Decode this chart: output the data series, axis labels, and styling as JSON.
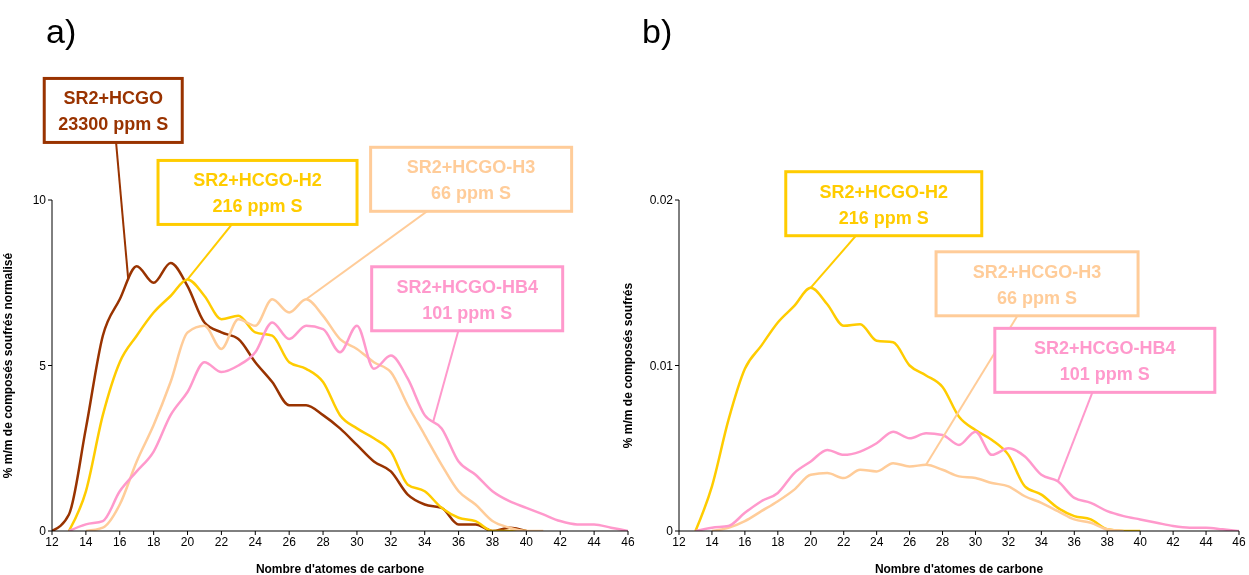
{
  "chart_data": [
    {
      "type": "line",
      "title": "a)",
      "xlabel": "Nombre d'atomes de carbone",
      "ylabel": "% m/m de composés soufrés normalisé",
      "x": [
        12,
        13,
        14,
        15,
        16,
        17,
        18,
        19,
        20,
        21,
        22,
        23,
        24,
        25,
        26,
        27,
        28,
        29,
        30,
        31,
        32,
        33,
        34,
        35,
        36,
        37,
        38,
        39,
        40,
        41,
        42,
        43,
        44,
        45,
        46
      ],
      "xlim": [
        12,
        46
      ],
      "xticks": [
        12,
        14,
        16,
        18,
        20,
        22,
        24,
        26,
        28,
        30,
        32,
        34,
        36,
        38,
        40,
        42,
        44,
        46
      ],
      "ylim": [
        0,
        10
      ],
      "yticks": [
        0,
        5,
        10
      ],
      "series": [
        {
          "color": "#993300",
          "values": [
            0,
            0.5,
            3.1,
            5.9,
            7.0,
            8.0,
            7.5,
            8.1,
            7.4,
            6.3,
            6.0,
            5.8,
            5.1,
            4.5,
            3.8,
            3.8,
            3.5,
            3.1,
            2.6,
            2.1,
            1.8,
            1.1,
            0.8,
            0.7,
            0.2,
            0.2,
            0,
            0.1,
            0,
            null,
            null,
            null,
            null,
            null,
            null
          ]
        },
        {
          "color": "#ffcc00",
          "values": [
            null,
            0,
            1.2,
            3.5,
            5.1,
            5.9,
            6.6,
            7.1,
            7.6,
            7.1,
            6.4,
            6.5,
            6.0,
            5.9,
            5.1,
            4.9,
            4.5,
            3.5,
            3.1,
            2.8,
            2.4,
            1.4,
            1.2,
            0.7,
            0.4,
            0.3,
            0,
            0,
            0,
            null,
            null,
            null,
            null,
            null,
            null
          ]
        },
        {
          "color": "#ffcc99",
          "values": [
            null,
            null,
            0,
            0.1,
            0.8,
            2.1,
            3.2,
            4.5,
            6.0,
            6.2,
            5.5,
            6.4,
            6.2,
            7.0,
            6.6,
            7.0,
            6.5,
            5.8,
            5.5,
            5.1,
            4.8,
            3.8,
            2.9,
            2.0,
            1.2,
            0.8,
            0.3,
            0.1,
            0,
            0,
            null,
            null,
            null,
            null,
            null
          ]
        },
        {
          "color": "#ff99cc",
          "values": [
            null,
            0,
            0.2,
            0.3,
            1.2,
            1.8,
            2.4,
            3.5,
            4.2,
            5.1,
            4.8,
            5.0,
            5.4,
            6.3,
            5.8,
            6.2,
            6.1,
            5.4,
            6.2,
            4.9,
            5.3,
            4.6,
            3.5,
            3.1,
            2.1,
            1.7,
            1.2,
            0.9,
            0.7,
            0.5,
            0.3,
            0.2,
            0.2,
            0.1,
            0
          ]
        }
      ],
      "annotations": [
        {
          "text": "SR2+HCGO\n23300 ppm S",
          "x": 16.5,
          "y": 7.6
        },
        {
          "text": "SR2+HCGO-H2\n216 ppm S",
          "x": 20,
          "y": 7.6
        },
        {
          "text": "SR2+HCGO-H3\n66 ppm S",
          "x": 27,
          "y": 7.0
        },
        {
          "text": "SR2+HCGO-HB4\n101 ppm S",
          "x": 34.5,
          "y": 3.3
        }
      ]
    },
    {
      "type": "line",
      "title": "b)",
      "xlabel": "Nombre d'atomes de carbone",
      "ylabel": "% m/m de composés soufrés",
      "x": [
        13,
        14,
        15,
        16,
        17,
        18,
        19,
        20,
        21,
        22,
        23,
        24,
        25,
        26,
        27,
        28,
        29,
        30,
        31,
        32,
        33,
        34,
        35,
        36,
        37,
        38,
        39,
        40,
        41,
        42,
        43,
        44,
        45,
        46
      ],
      "xlim": [
        12,
        46
      ],
      "xticks": [
        12,
        14,
        16,
        18,
        20,
        22,
        24,
        26,
        28,
        30,
        32,
        34,
        36,
        38,
        40,
        42,
        44,
        46
      ],
      "ylim": [
        0,
        0.02
      ],
      "yticks": [
        0,
        0.01,
        0.02
      ],
      "series": [
        {
          "color": "#ffcc00",
          "values": [
            0,
            0.0027,
            0.0067,
            0.0098,
            0.0112,
            0.0126,
            0.0136,
            0.0147,
            0.0137,
            0.0124,
            0.0125,
            0.0115,
            0.0114,
            0.01,
            0.0094,
            0.0087,
            0.0069,
            0.0061,
            0.0055,
            0.0046,
            0.0027,
            0.0022,
            0.0014,
            0.0009,
            0.0007,
            0.0001,
            0,
            0,
            null,
            null,
            null,
            null,
            null,
            null
          ]
        },
        {
          "color": "#ffcc99",
          "values": [
            null,
            0,
            0.0002,
            0.0006,
            0.0012,
            0.0018,
            0.0025,
            0.0034,
            0.0035,
            0.0032,
            0.0037,
            0.0036,
            0.0041,
            0.0039,
            0.004,
            0.0037,
            0.0033,
            0.0032,
            0.0029,
            0.0027,
            0.0021,
            0.0017,
            0.0012,
            0.0007,
            0.0005,
            0.0001,
            0,
            null,
            null,
            null,
            null,
            null,
            null,
            null
          ]
        },
        {
          "color": "#ff99cc",
          "values": [
            0,
            0.0002,
            0.0003,
            0.0011,
            0.0018,
            0.0023,
            0.0035,
            0.0042,
            0.0049,
            0.0046,
            0.0048,
            0.0053,
            0.006,
            0.0056,
            0.0059,
            0.0058,
            0.0052,
            0.006,
            0.0046,
            0.005,
            0.0045,
            0.0034,
            0.003,
            0.002,
            0.0017,
            0.0012,
            0.0009,
            0.0007,
            0.0005,
            0.0003,
            0.0002,
            0.0002,
            0.0001,
            0
          ]
        }
      ],
      "annotations": [
        {
          "text": "SR2+HCGO-H2\n216 ppm S",
          "x": 20,
          "y": 0.0147
        },
        {
          "text": "SR2+HCGO-H3\n66 ppm S",
          "x": 27,
          "y": 0.004
        },
        {
          "text": "SR2+HCGO-HB4\n101 ppm S",
          "x": 35,
          "y": 0.003
        }
      ]
    }
  ]
}
